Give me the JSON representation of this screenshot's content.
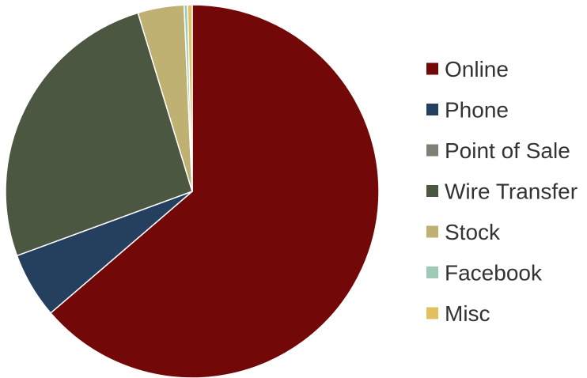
{
  "chart_data": {
    "type": "pie",
    "title": "",
    "legend_position": "right",
    "slices": [
      {
        "label": "Online",
        "value": 63.7,
        "color": "#730808"
      },
      {
        "label": "Phone",
        "value": 5.7,
        "color": "#253F5E"
      },
      {
        "label": "Point of Sale",
        "value": 0.0,
        "color": "#7F7F76"
      },
      {
        "label": "Wire Transfer",
        "value": 25.9,
        "color": "#4B5741"
      },
      {
        "label": "Stock",
        "value": 4.0,
        "color": "#BFB172"
      },
      {
        "label": "Facebook",
        "value": 0.3,
        "color": "#A0CAB8"
      },
      {
        "label": "Misc",
        "value": 0.4,
        "color": "#E3C05F"
      }
    ]
  }
}
